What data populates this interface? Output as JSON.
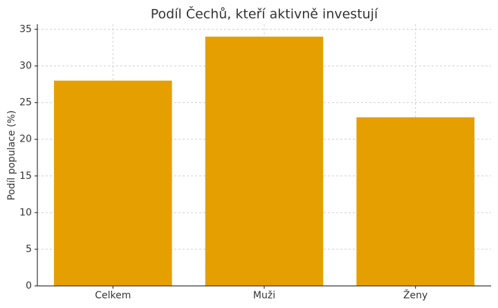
{
  "chart_data": {
    "type": "bar",
    "title": "Podíl Čechů, kteří aktivně investují",
    "y_label": "Podíl populace (%)",
    "categories": [
      "Celkem",
      "Muži",
      "Ženy"
    ],
    "values": [
      28,
      34,
      23
    ],
    "color": "#e5a000",
    "ylim": [
      0,
      35.7
    ],
    "yticks": [
      0,
      5,
      10,
      15,
      20,
      25,
      30,
      35
    ],
    "grid": true
  }
}
